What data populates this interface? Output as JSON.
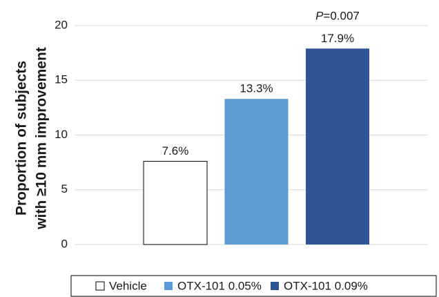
{
  "chart_data": {
    "type": "bar",
    "y_label": [
      "Proportion of subjects",
      "with ≥10 mm improvement"
    ],
    "annotation": [
      "P",
      "=0.007"
    ],
    "categories": [
      null
    ],
    "series": [
      {
        "name": "Vehicle",
        "color": "#ffffff",
        "values": [
          7.6
        ],
        "value_labels": [
          "7.6%"
        ]
      },
      {
        "name": "OTX-101 0.05%",
        "color": "#5b9bd5",
        "values": [
          13.3
        ],
        "value_labels": [
          "13.3%"
        ]
      },
      {
        "name": "OTX-101 0.09%",
        "color": "#2f5597",
        "values": [
          17.9
        ],
        "value_labels": [
          "17.9%"
        ]
      }
    ],
    "ylim": [
      0,
      20
    ],
    "yticks": [
      0,
      5,
      10,
      15,
      20
    ],
    "grid": true,
    "legend": "bottom"
  }
}
